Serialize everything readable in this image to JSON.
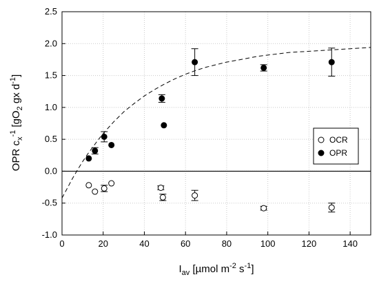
{
  "chart_data": {
    "type": "scatter",
    "xlabel": {
      "main": "I",
      "sub": "av",
      "rest": " [µmol m",
      "sup1": "-2",
      "mid": " s",
      "sup2": "-1",
      "end": "]"
    },
    "ylabel": {
      "main": "OPR c",
      "sub1": "x",
      "sup1": "-1",
      "mid1": " [gO",
      "sub2": "2",
      "mid2": " gx d",
      "sup2": "-1",
      "end": "]"
    },
    "xlim": [
      0,
      150
    ],
    "ylim": [
      -1.0,
      2.5
    ],
    "xticks": [
      0,
      20,
      40,
      60,
      80,
      100,
      120,
      140
    ],
    "yticks": [
      -1.0,
      -0.5,
      0.0,
      0.5,
      1.0,
      1.5,
      2.0,
      2.5
    ],
    "xtick_labels": [
      "0",
      "20",
      "40",
      "60",
      "80",
      "100",
      "120",
      "140"
    ],
    "ytick_labels": [
      "-1.0",
      "-0.5",
      "0.0",
      "0.5",
      "1.0",
      "1.5",
      "2.0",
      "2.5"
    ],
    "grid": true,
    "zero_line": 0,
    "legend_position": "right",
    "series": [
      {
        "name": "OCR",
        "marker": "open-circle",
        "points": [
          {
            "x": 13,
            "y": -0.22,
            "err": 0
          },
          {
            "x": 16,
            "y": -0.32,
            "err": 0
          },
          {
            "x": 20.5,
            "y": -0.27,
            "err": 0.05
          },
          {
            "x": 24,
            "y": -0.19,
            "err": 0
          },
          {
            "x": 48,
            "y": -0.26,
            "err": 0.03
          },
          {
            "x": 49,
            "y": -0.41,
            "err": 0.05
          },
          {
            "x": 64.5,
            "y": -0.38,
            "err": 0.08
          },
          {
            "x": 98,
            "y": -0.58,
            "err": 0.03
          },
          {
            "x": 131,
            "y": -0.57,
            "err": 0.07
          }
        ]
      },
      {
        "name": "OPR",
        "marker": "filled-circle",
        "points": [
          {
            "x": 13,
            "y": 0.2,
            "err": 0
          },
          {
            "x": 16,
            "y": 0.32,
            "err": 0.05
          },
          {
            "x": 20.5,
            "y": 0.54,
            "err": 0.08
          },
          {
            "x": 24,
            "y": 0.41,
            "err": 0
          },
          {
            "x": 48.5,
            "y": 1.14,
            "err": 0.06
          },
          {
            "x": 49.5,
            "y": 0.72,
            "err": 0
          },
          {
            "x": 64.5,
            "y": 1.71,
            "err": 0.21
          },
          {
            "x": 98,
            "y": 1.62,
            "err": 0.05
          },
          {
            "x": 131,
            "y": 1.71,
            "err": 0.22
          }
        ]
      }
    ],
    "fit_curve": {
      "style": "dashed",
      "x": [
        0,
        2.5,
        5,
        7.5,
        10,
        12.5,
        15,
        17.5,
        20,
        25,
        30,
        35,
        40,
        45,
        50,
        55,
        60,
        65,
        70,
        75,
        80,
        85,
        90,
        95,
        100,
        105,
        110,
        115,
        120,
        125,
        130,
        135,
        140,
        145,
        150
      ],
      "y": [
        -0.42,
        -0.27,
        -0.12,
        0.02,
        0.15,
        0.27,
        0.38,
        0.49,
        0.59,
        0.77,
        0.93,
        1.06,
        1.18,
        1.28,
        1.37,
        1.45,
        1.52,
        1.58,
        1.63,
        1.67,
        1.71,
        1.74,
        1.77,
        1.8,
        1.82,
        1.84,
        1.86,
        1.87,
        1.88,
        1.89,
        1.9,
        1.91,
        1.92,
        1.93,
        1.94
      ]
    }
  }
}
